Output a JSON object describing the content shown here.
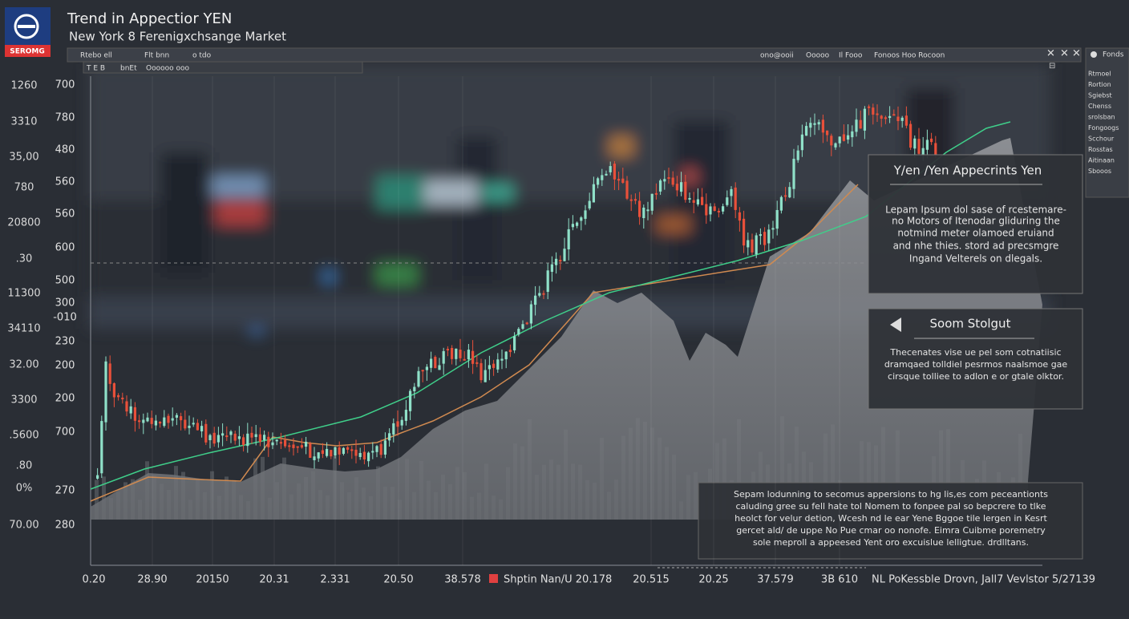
{
  "header": {
    "logo": "SEROMG",
    "title": "Trend in Appectior YEN",
    "subtitle": "New York 8 Ferenigxchsange Market"
  },
  "toolbar": {
    "left_items": [
      "Rtebo ell",
      "Flt bnn",
      "o tdo"
    ],
    "right_items": [
      "ono@ooii",
      "Ooooo",
      "Il Fooo",
      "Fonoos Hoo Rocoon"
    ],
    "tabs": [
      "T E B",
      "bnEt",
      "Oooooo ooo"
    ]
  },
  "axis": {
    "outer_labels": [
      "1260",
      "3310",
      "35,00",
      "780",
      "20800",
      ".30",
      "11300",
      "34110",
      "32.00",
      "3300",
      ".5600",
      ".80",
      "0%",
      "70.00"
    ],
    "inner_labels": [
      "700",
      "780",
      "480",
      "560",
      "560",
      "600",
      "500",
      "300",
      "-010",
      "230",
      "200",
      "200",
      "700",
      "270",
      "280"
    ],
    "x_labels": [
      "0.20",
      "28.90",
      "20150",
      "20.31",
      "2.331",
      "20.50",
      "38.578",
      "20.515",
      "20.25",
      "37.579",
      "3B 610",
      "NL PoKessble Drovn, Jall7 Vevlstor 5/27139"
    ],
    "legend": "Shptin Nan/U 20.178"
  },
  "panels": [
    {
      "title": "Y/en /Yen Appecrints Yen",
      "body": [
        "Lepam Ipsum dol sase of rcestemare-",
        "no Motors of Itenodar gliduring the",
        "notmind meter olamoed eruiand",
        "and nhe thies. stord ad precsmgre",
        "Ingand Velterels on dlegals."
      ]
    },
    {
      "title": "Soom Stolgut",
      "body": [
        "Thecenates vise ue pel som cotnatiisic",
        "dramqaed tolldiel pesrmos naalsmoe gae",
        "cirsque tolliee to adlon e or gtale olktor."
      ]
    },
    {
      "body": [
        "Sepam lodunning to secomus appersions to hg lis,es com peceantionts",
        "caluding gree su fell hate tol Nomem to fonpee pal so bepcrere to tlke",
        "heolct for velur detion, Wcesh nd le ear Yene Bggoe tile lergen in Kesrt",
        "gercet ald/ de uppe No Pue cmar oo nonofe. Eimra Cuibme poremetry",
        "sole meproll a appeesed Yent oro excuislue lelligtue. drdlltans."
      ]
    }
  ],
  "sidebar": {
    "title": "Fonds",
    "items": [
      "Rtmoel",
      "Rortion",
      "Sgiebst",
      "Chenss",
      "srolsban",
      "Fongoogs",
      "Scchour",
      "Rosstas",
      "Aitinaan",
      "Sbooos"
    ]
  }
}
